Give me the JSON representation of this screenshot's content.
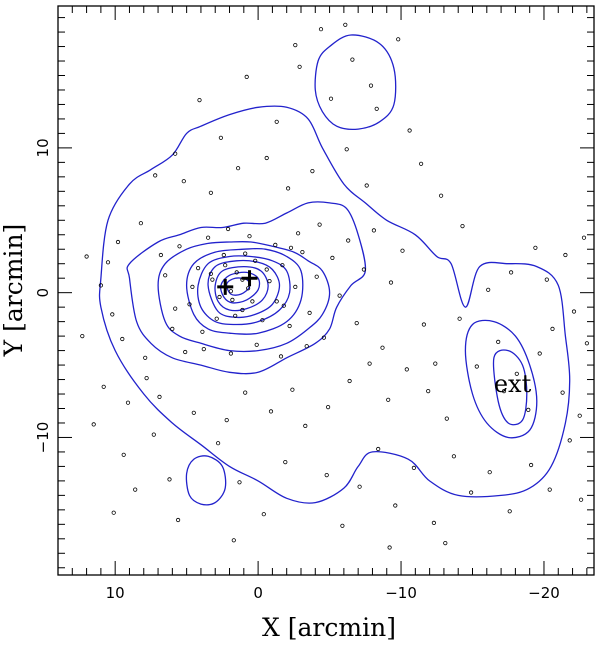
{
  "chart_data": {
    "type": "scatter",
    "xlabel": "X [arcmin]",
    "ylabel": "Y [arcmin]",
    "xlim": [
      14,
      -23.5
    ],
    "ylim": [
      -19.5,
      19.8
    ],
    "x_ticks": [
      10,
      0,
      -10,
      -20
    ],
    "y_ticks": [
      10,
      0,
      -10
    ],
    "contour_color": "#2222cc",
    "point_color": "#000000",
    "annotation": {
      "text": "ext",
      "x": -17.8,
      "y": -6.3
    },
    "cross_markers": [
      {
        "x": 2.3,
        "y": 0.4
      },
      {
        "x": 0.6,
        "y": 1.0
      }
    ],
    "contours": [
      {
        "level": 1,
        "points": [
          [
            11,
            1
          ],
          [
            10.5,
            5
          ],
          [
            9,
            7.5
          ],
          [
            7.5,
            8.5
          ],
          [
            6,
            9.5
          ],
          [
            5,
            11
          ],
          [
            4,
            11.5
          ],
          [
            2,
            12.3
          ],
          [
            0,
            12.8
          ],
          [
            -2,
            12.8
          ],
          [
            -3.5,
            12
          ],
          [
            -4.5,
            10
          ],
          [
            -6,
            7.5
          ],
          [
            -7.5,
            6.2
          ],
          [
            -9,
            5
          ],
          [
            -11,
            4
          ],
          [
            -12.5,
            2.5
          ],
          [
            -13.5,
            2
          ],
          [
            -14.5,
            -1
          ],
          [
            -15.5,
            1.8
          ],
          [
            -17.5,
            2
          ],
          [
            -19.5,
            1.8
          ],
          [
            -21,
            0.5
          ],
          [
            -21.5,
            -3
          ],
          [
            -21.8,
            -6
          ],
          [
            -21.5,
            -9
          ],
          [
            -20.5,
            -12
          ],
          [
            -19,
            -13.5
          ],
          [
            -17,
            -14
          ],
          [
            -14,
            -14
          ],
          [
            -12,
            -13
          ],
          [
            -10.5,
            -11.5
          ],
          [
            -8,
            -11
          ],
          [
            -7,
            -12
          ],
          [
            -6,
            -13.5
          ],
          [
            -4,
            -14.5
          ],
          [
            -2,
            -14.2
          ],
          [
            0,
            -13
          ],
          [
            2,
            -12
          ],
          [
            4,
            -10.5
          ],
          [
            6,
            -9
          ],
          [
            8,
            -7
          ],
          [
            10,
            -4
          ],
          [
            11,
            -1
          ],
          [
            11,
            1
          ]
        ]
      },
      {
        "level": 2,
        "points": [
          [
            9,
            1
          ],
          [
            9,
            2
          ],
          [
            7,
            3.5
          ],
          [
            5.5,
            4
          ],
          [
            4,
            4.5
          ],
          [
            2.5,
            4.5
          ],
          [
            1,
            4.8
          ],
          [
            -0.5,
            4.8
          ],
          [
            -2,
            5.5
          ],
          [
            -3.5,
            6.2
          ],
          [
            -5,
            6.2
          ],
          [
            -6.2,
            5.8
          ],
          [
            -7,
            4
          ],
          [
            -7.5,
            1.5
          ],
          [
            -6.5,
            0.5
          ],
          [
            -5.5,
            -1
          ],
          [
            -5,
            -2.5
          ],
          [
            -4,
            -3.5
          ],
          [
            -2,
            -4.5
          ],
          [
            0,
            -5.5
          ],
          [
            2,
            -5.5
          ],
          [
            4,
            -5
          ],
          [
            6,
            -4.5
          ],
          [
            7.5,
            -3.5
          ],
          [
            8.5,
            -2
          ],
          [
            9,
            1
          ]
        ]
      },
      {
        "level": 3,
        "points": [
          [
            7,
            0.5
          ],
          [
            6.5,
            2
          ],
          [
            5,
            3
          ],
          [
            3.5,
            3.4
          ],
          [
            2,
            3.5
          ],
          [
            0.5,
            3.5
          ],
          [
            -1,
            3.2
          ],
          [
            -2.5,
            2.8
          ],
          [
            -3.5,
            2.2
          ],
          [
            -4.5,
            1.5
          ],
          [
            -5,
            0
          ],
          [
            -4.5,
            -1.5
          ],
          [
            -3.5,
            -2.5
          ],
          [
            -2,
            -3.5
          ],
          [
            0,
            -4
          ],
          [
            2,
            -4
          ],
          [
            4,
            -3.5
          ],
          [
            5.5,
            -3
          ],
          [
            6.5,
            -2
          ],
          [
            7,
            0.5
          ]
        ]
      },
      {
        "level": 4,
        "points": [
          [
            5,
            0.5
          ],
          [
            4.5,
            2
          ],
          [
            3,
            2.8
          ],
          [
            1,
            3
          ],
          [
            -0.5,
            3
          ],
          [
            -2,
            2.5
          ],
          [
            -3,
            1.5
          ],
          [
            -3,
            -0.5
          ],
          [
            -2,
            -2
          ],
          [
            0,
            -2.8
          ],
          [
            2,
            -2.8
          ],
          [
            3.5,
            -2.5
          ],
          [
            4.5,
            -1.5
          ],
          [
            5,
            0.5
          ]
        ]
      },
      {
        "level": 5,
        "points": [
          [
            4.2,
            0.5
          ],
          [
            3.5,
            2
          ],
          [
            2,
            2.5
          ],
          [
            0.5,
            2.5
          ],
          [
            -1,
            2.2
          ],
          [
            -2,
            1.5
          ],
          [
            -2.2,
            0
          ],
          [
            -1.5,
            -1.2
          ],
          [
            0,
            -2
          ],
          [
            1.5,
            -2.2
          ],
          [
            3,
            -2
          ],
          [
            4,
            -1
          ],
          [
            4.2,
            0.5
          ]
        ]
      },
      {
        "level": 6,
        "points": [
          [
            3.5,
            0.5
          ],
          [
            3,
            1.8
          ],
          [
            1.5,
            2.2
          ],
          [
            0,
            2.1
          ],
          [
            -1,
            1.6
          ],
          [
            -1.5,
            0.5
          ],
          [
            -1,
            -0.8
          ],
          [
            0.2,
            -1.5
          ],
          [
            1.5,
            -1.7
          ],
          [
            2.8,
            -1.3
          ],
          [
            3.5,
            0.5
          ]
        ]
      },
      {
        "level": 7,
        "points": [
          [
            3,
            0.5
          ],
          [
            2.5,
            1.5
          ],
          [
            1,
            1.8
          ],
          [
            -0.2,
            1.5
          ],
          [
            -0.7,
            0.5
          ],
          [
            -0.3,
            -0.5
          ],
          [
            0.8,
            -1.1
          ],
          [
            2,
            -1.2
          ],
          [
            2.8,
            -0.6
          ],
          [
            3,
            0.5
          ]
        ]
      },
      {
        "level": 8,
        "points": [
          [
            2.6,
            0.5
          ],
          [
            2,
            1.2
          ],
          [
            0.8,
            1.4
          ],
          [
            0,
            1
          ],
          [
            0,
            0.2
          ],
          [
            0.8,
            -0.5
          ],
          [
            1.8,
            -0.7
          ],
          [
            2.4,
            -0.3
          ],
          [
            2.6,
            0.5
          ]
        ]
      },
      {
        "level": 9,
        "points": [
          [
            2.2,
            0.6
          ],
          [
            1.6,
            1
          ],
          [
            0.8,
            0.9
          ],
          [
            0.6,
            0.4
          ],
          [
            1.2,
            -0.1
          ],
          [
            1.9,
            -0.1
          ],
          [
            2.2,
            0.6
          ]
        ]
      },
      {
        "level": 2,
        "points": [
          [
            -14.5,
            -4
          ],
          [
            -15,
            -2.2
          ],
          [
            -16.5,
            -2
          ],
          [
            -18,
            -3
          ],
          [
            -19,
            -5
          ],
          [
            -19.5,
            -7.5
          ],
          [
            -19,
            -9.5
          ],
          [
            -17.5,
            -10
          ],
          [
            -16,
            -9
          ],
          [
            -15,
            -7
          ],
          [
            -14.5,
            -4
          ]
        ]
      },
      {
        "level": 3,
        "points": [
          [
            -16.5,
            -4.5
          ],
          [
            -17.5,
            -4
          ],
          [
            -18.5,
            -5
          ],
          [
            -18.8,
            -7
          ],
          [
            -18.5,
            -8.8
          ],
          [
            -17.5,
            -9
          ],
          [
            -16.8,
            -7.5
          ],
          [
            -16.5,
            -4.5
          ]
        ]
      },
      {
        "level": 1,
        "points": [
          [
            -4.2,
            16
          ],
          [
            -5,
            17
          ],
          [
            -6.5,
            17.8
          ],
          [
            -8.5,
            17.2
          ],
          [
            -9.5,
            15.5
          ],
          [
            -9.5,
            13
          ],
          [
            -8.5,
            11.8
          ],
          [
            -7,
            11.3
          ],
          [
            -5.5,
            11.5
          ],
          [
            -4.5,
            12.5
          ],
          [
            -4,
            14
          ],
          [
            -4.2,
            16
          ]
        ]
      },
      {
        "level": 1,
        "points": [
          [
            5,
            -12.5
          ],
          [
            4.5,
            -11.5
          ],
          [
            3.5,
            -11.3
          ],
          [
            2.5,
            -12
          ],
          [
            2.3,
            -13.5
          ],
          [
            3,
            -14.5
          ],
          [
            4,
            -14.6
          ],
          [
            4.8,
            -14
          ],
          [
            5,
            -12.5
          ]
        ]
      }
    ],
    "points": [
      [
        10.5,
        2.1
      ],
      [
        9.8,
        3.5
      ],
      [
        10.2,
        -1.5
      ],
      [
        9.5,
        -3.2
      ],
      [
        11,
        0.5
      ],
      [
        8.2,
        4.8
      ],
      [
        7.9,
        -4.5
      ],
      [
        6.5,
        1.2
      ],
      [
        6,
        -2.5
      ],
      [
        5.5,
        3.2
      ],
      [
        4.8,
        -0.8
      ],
      [
        4.2,
        1.7
      ],
      [
        3.9,
        -2.7
      ],
      [
        3.2,
        0.9
      ],
      [
        2.9,
        -1.8
      ],
      [
        2.4,
        2.6
      ],
      [
        1.8,
        -0.5
      ],
      [
        1.5,
        1.4
      ],
      [
        1.1,
        -1.2
      ],
      [
        0.7,
        0.3
      ],
      [
        0.2,
        2.2
      ],
      [
        -0.3,
        -1.9
      ],
      [
        -0.8,
        0.8
      ],
      [
        -1.3,
        -0.6
      ],
      [
        -1.7,
        1.9
      ],
      [
        -2.2,
        -2.3
      ],
      [
        -2.6,
        0.4
      ],
      [
        -3.1,
        2.8
      ],
      [
        -3.6,
        -1.4
      ],
      [
        -4.1,
        1.1
      ],
      [
        -4.6,
        -3.1
      ],
      [
        -5.2,
        2.4
      ],
      [
        -5.7,
        -0.2
      ],
      [
        -6.3,
        3.6
      ],
      [
        -6.9,
        -2.1
      ],
      [
        -7.4,
        1.6
      ],
      [
        -8.1,
        4.3
      ],
      [
        -8.7,
        -3.8
      ],
      [
        -9.3,
        0.7
      ],
      [
        -10.1,
        2.9
      ],
      [
        3.5,
        3.8
      ],
      [
        2.1,
        4.4
      ],
      [
        0.6,
        3.9
      ],
      [
        -1.2,
        3.3
      ],
      [
        -2.8,
        4.1
      ],
      [
        -4.3,
        4.7
      ],
      [
        3.8,
        -3.9
      ],
      [
        1.9,
        -4.2
      ],
      [
        0.1,
        -3.6
      ],
      [
        -1.6,
        -4.4
      ],
      [
        -3.4,
        -3.7
      ],
      [
        5.1,
        -4.1
      ],
      [
        10.8,
        -6.5
      ],
      [
        11.5,
        -9.1
      ],
      [
        9.4,
        -11.2
      ],
      [
        8.6,
        -13.6
      ],
      [
        10.1,
        -15.2
      ],
      [
        7.3,
        -9.8
      ],
      [
        6.2,
        -12.9
      ],
      [
        5.6,
        -15.7
      ],
      [
        4.5,
        -8.3
      ],
      [
        2.8,
        -10.4
      ],
      [
        1.3,
        -13.1
      ],
      [
        -0.4,
        -15.3
      ],
      [
        -1.9,
        -11.7
      ],
      [
        -3.3,
        -9.2
      ],
      [
        -4.8,
        -12.6
      ],
      [
        -5.9,
        -16.1
      ],
      [
        -7.1,
        -13.4
      ],
      [
        -8.4,
        -10.8
      ],
      [
        -9.6,
        -14.7
      ],
      [
        -10.9,
        -12.1
      ],
      [
        -12.3,
        -15.9
      ],
      [
        -13.7,
        -11.3
      ],
      [
        -14.9,
        -13.8
      ],
      [
        -16.2,
        -12.4
      ],
      [
        -17.6,
        -15.1
      ],
      [
        -19.1,
        -11.9
      ],
      [
        -20.4,
        -13.6
      ],
      [
        -21.8,
        -10.2
      ],
      [
        -22.6,
        -14.3
      ],
      [
        -15.3,
        -5.1
      ],
      [
        -16.8,
        -3.4
      ],
      [
        -17.2,
        -6.8
      ],
      [
        -18.1,
        -5.6
      ],
      [
        -18.9,
        -8.1
      ],
      [
        -19.7,
        -4.2
      ],
      [
        -20.6,
        -2.5
      ],
      [
        -21.3,
        -6.9
      ],
      [
        -22.1,
        -1.3
      ],
      [
        -14.1,
        -1.8
      ],
      [
        -13.2,
        -8.7
      ],
      [
        -12.4,
        -4.9
      ],
      [
        -11.6,
        -2.2
      ],
      [
        -20.2,
        0.9
      ],
      [
        -21.5,
        2.6
      ],
      [
        -22.8,
        3.8
      ],
      [
        -19.4,
        3.1
      ],
      [
        -17.7,
        1.4
      ],
      [
        -16.1,
        0.2
      ],
      [
        -7.9,
        14.3
      ],
      [
        -6.6,
        16.1
      ],
      [
        -8.3,
        12.7
      ],
      [
        -5.1,
        13.4
      ],
      [
        -9.8,
        17.5
      ],
      [
        -4.4,
        18.2
      ],
      [
        -2.9,
        15.6
      ],
      [
        -1.3,
        11.8
      ],
      [
        0.8,
        14.9
      ],
      [
        2.6,
        10.7
      ],
      [
        4.1,
        13.3
      ],
      [
        5.8,
        9.6
      ],
      [
        7.2,
        8.1
      ],
      [
        -11.4,
        8.9
      ],
      [
        -10.6,
        11.2
      ],
      [
        -12.8,
        6.7
      ],
      [
        -14.3,
        4.6
      ],
      [
        -3.8,
        8.4
      ],
      [
        -2.1,
        7.2
      ],
      [
        -0.6,
        9.3
      ],
      [
        1.4,
        8.6
      ],
      [
        3.3,
        6.9
      ],
      [
        5.2,
        7.7
      ],
      [
        -6.2,
        9.9
      ],
      [
        -7.6,
        7.4
      ],
      [
        9.1,
        -7.6
      ],
      [
        7.8,
        -5.9
      ],
      [
        6.9,
        -7.2
      ],
      [
        -6.4,
        -6.1
      ],
      [
        -7.8,
        -4.9
      ],
      [
        -9.1,
        -7.4
      ],
      [
        -10.4,
        -5.3
      ],
      [
        -11.9,
        -6.8
      ],
      [
        -2.4,
        -6.7
      ],
      [
        -0.9,
        -8.2
      ],
      [
        0.9,
        -6.9
      ],
      [
        2.2,
        -8.8
      ],
      [
        -4.9,
        -7.9
      ],
      [
        1.1,
        0.9
      ],
      [
        1.9,
        0.1
      ],
      [
        2.7,
        -0.3
      ],
      [
        0.4,
        -0.6
      ],
      [
        -0.6,
        1.6
      ],
      [
        3.3,
        1.3
      ],
      [
        2.3,
        1.9
      ],
      [
        1.6,
        -1.6
      ],
      [
        0.9,
        2.7
      ],
      [
        4.6,
        0.4
      ],
      [
        -1.8,
        -0.9
      ],
      [
        5.8,
        -1.1
      ],
      [
        6.8,
        2.6
      ],
      [
        -2.3,
        3.1
      ],
      [
        12,
        2.5
      ],
      [
        12.3,
        -3
      ],
      [
        -23,
        -3.5
      ],
      [
        -22.5,
        -8.5
      ],
      [
        -2.6,
        17.1
      ],
      [
        -6.1,
        18.5
      ],
      [
        1.7,
        -17.1
      ],
      [
        -9.2,
        -17.6
      ],
      [
        -13.1,
        -17.3
      ]
    ]
  }
}
